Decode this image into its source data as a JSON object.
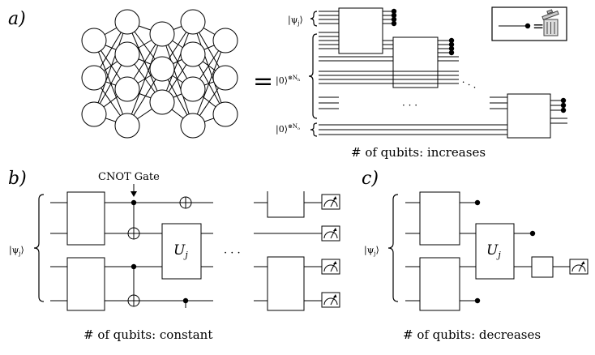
{
  "panels": {
    "a": {
      "label": "a)",
      "equals": "=",
      "psi_j": "|ψ",
      "psi_j_sub": "j",
      "psi_j_close": "⟩",
      "zero_h": "|0⟩",
      "zero_h_sup": "⊗N",
      "zero_h_sub": "h",
      "zero_o": "|0⟩",
      "zero_o_sup": "⊗N",
      "zero_o_sub": "o",
      "ellipsis": "· · ·",
      "diag_ellipsis": "·  ·  ·",
      "caption": "# of qubits: increases",
      "legend_equals": "="
    },
    "b": {
      "label": "b)",
      "psi_j": "|ψ",
      "psi_j_sub": "j",
      "psi_j_close": "⟩",
      "cnot_label": "CNOT Gate",
      "gate_label": "U",
      "gate_sub": "j",
      "ellipsis": "· · ·",
      "caption": "# of qubits: constant"
    },
    "c": {
      "label": "c)",
      "psi_j": "|ψ",
      "psi_j_sub": "j",
      "psi_j_close": "⟩",
      "gate_label": "U",
      "gate_sub": "j",
      "caption": "# of qubits: decreases"
    }
  }
}
